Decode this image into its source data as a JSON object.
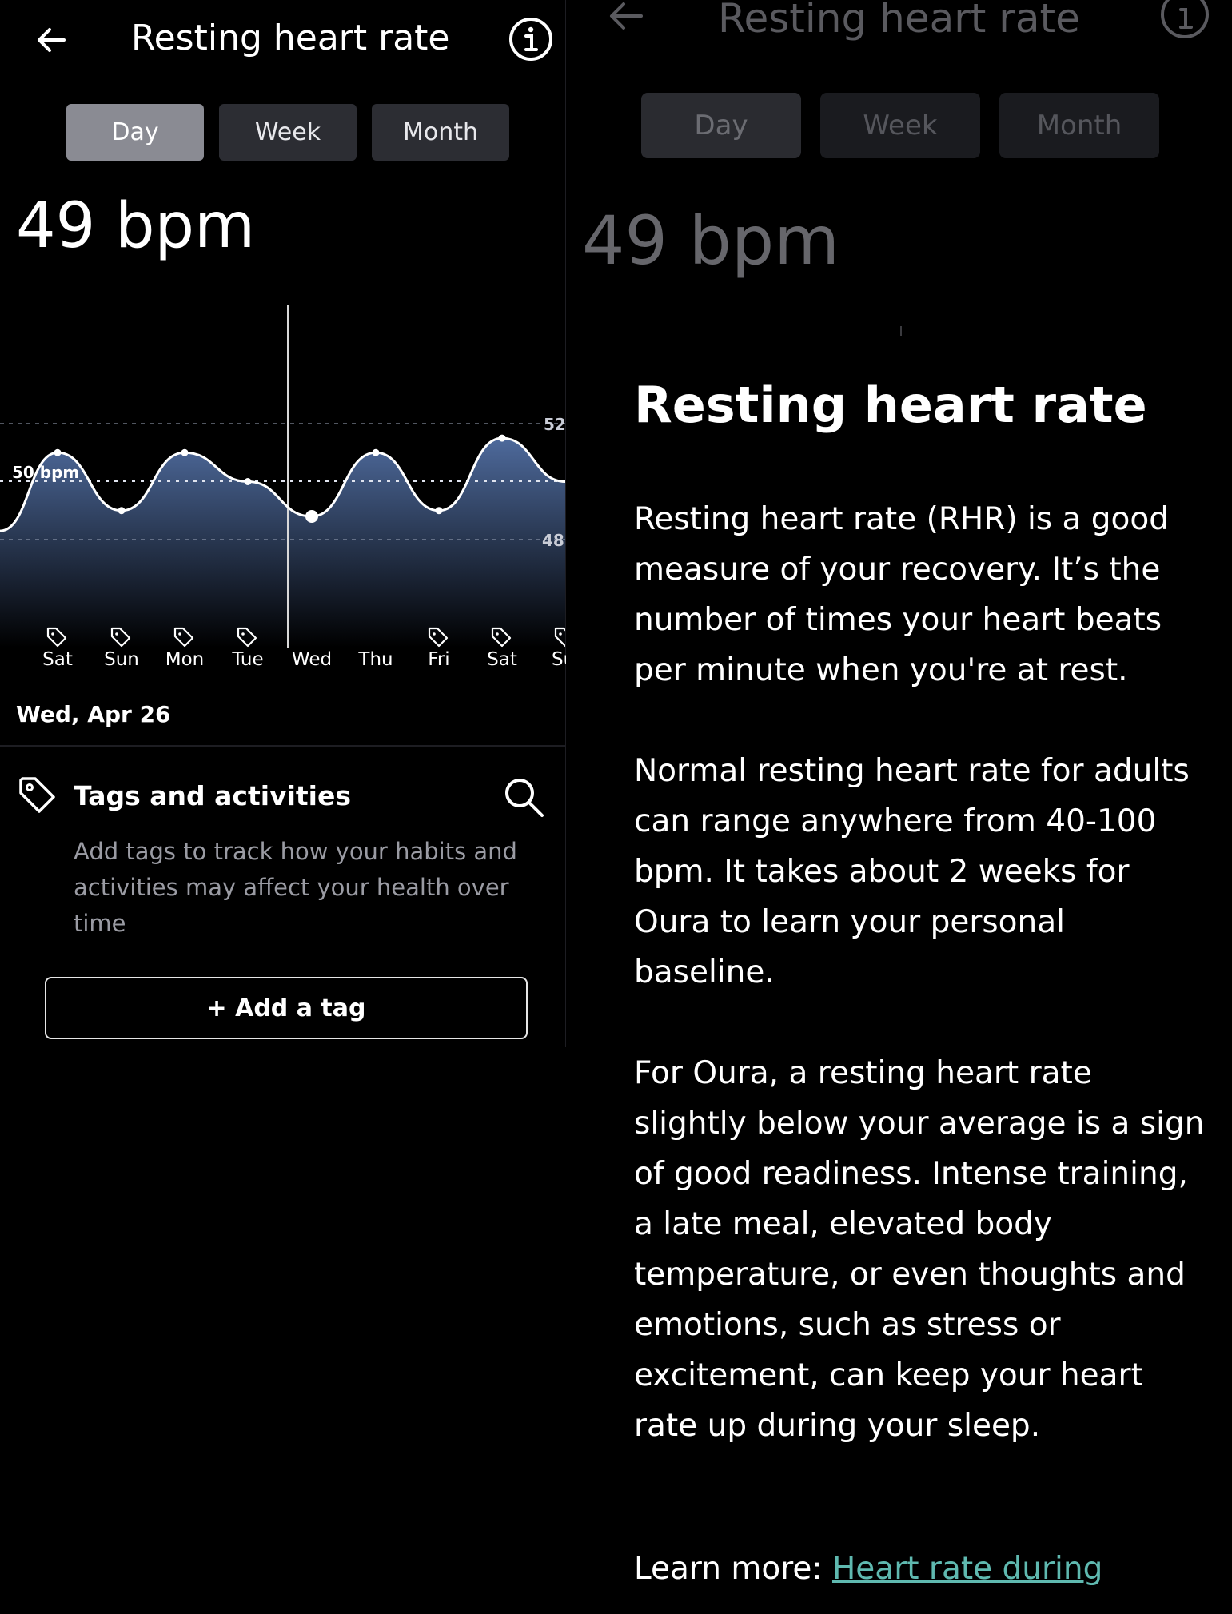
{
  "header": {
    "title": "Resting heart rate"
  },
  "range_tabs": [
    "Day",
    "Week",
    "Month"
  ],
  "active_tab": "Day",
  "current_value": "49 bpm",
  "chart": {
    "baseline_label": "50 bpm",
    "y_labels": [
      "52",
      "48"
    ],
    "days": [
      "Sat",
      "Sun",
      "Mon",
      "Tue",
      "Wed",
      "Thu",
      "Fri",
      "Sat",
      "Su"
    ]
  },
  "chart_data": {
    "type": "line",
    "categories": [
      "Sat",
      "Sun",
      "Mon",
      "Tue",
      "Wed",
      "Thu",
      "Fri",
      "Sat",
      "Su"
    ],
    "values": [
      51,
      49,
      51,
      50,
      48.8,
      51,
      49,
      51.5,
      50
    ],
    "baseline": 50,
    "selected": "Wed",
    "tagged_days": [
      "Sat",
      "Sun",
      "Mon",
      "Tue",
      "Fri",
      "Sat",
      "Su"
    ]
  },
  "selected_date": "Wed, Apr 26",
  "tags": {
    "title": "Tags and activities",
    "description": "Add tags to track how your habits and activities may affect your health over time",
    "add_button": "+ Add a tag"
  },
  "info_sheet": {
    "title": "Resting heart rate",
    "paragraphs": [
      "Resting heart rate (RHR) is a good measure of your recovery. It’s the number of times your heart beats per minute when you're at rest.",
      "Normal resting heart rate for adults can range anywhere from 40-100 bpm. It takes about 2 weeks for Oura to learn your personal baseline.",
      "For Oura, a resting heart rate slightly below your average is a sign of good readiness. Intense training, a late meal, elevated body temperature, or even thoughts and emotions, such as stress or excitement, can keep your heart rate up during your sleep."
    ],
    "learn_more_label": "Learn more: ",
    "learn_more_link": "Heart rate during"
  },
  "colors": {
    "chart_fill_top": "#4e6a9c",
    "chart_fill_bottom": "#000000",
    "link": "#5fb9b0",
    "active_tab": "#8a8b93"
  }
}
